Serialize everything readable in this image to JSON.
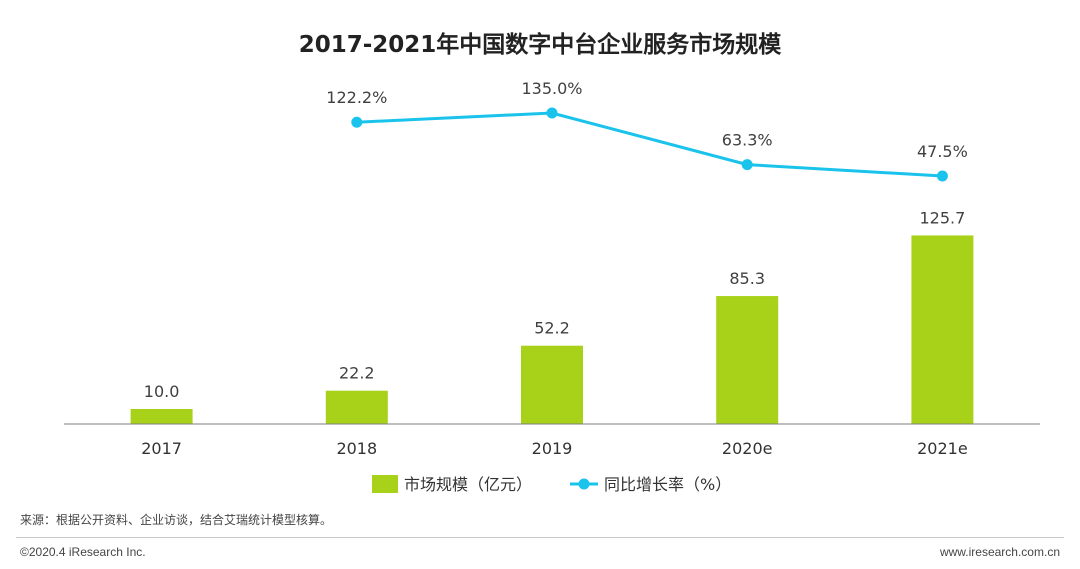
{
  "chart_data": {
    "type": "bar",
    "title": "2017-2021年中国数字中台企业服务市场规模",
    "categories": [
      "2017",
      "2018",
      "2019",
      "2020e",
      "2021e"
    ],
    "series": [
      {
        "name": "市场规模（亿元）",
        "kind": "bar",
        "color": "#a8d11a",
        "values": [
          10.0,
          22.2,
          52.2,
          85.3,
          125.7
        ],
        "labels": [
          "10.0",
          "22.2",
          "52.2",
          "85.3",
          "125.7"
        ]
      },
      {
        "name": "同比增长率（%）",
        "kind": "line",
        "color": "#19c3ec",
        "values": [
          null,
          122.2,
          135.0,
          63.3,
          47.5
        ],
        "labels": [
          "",
          "122.2%",
          "135.0%",
          "63.3%",
          "47.5%"
        ]
      }
    ],
    "xlabel": "",
    "ylabel": "",
    "ylim_bar": [
      0,
      140
    ],
    "ylim_line": [
      0,
      160
    ],
    "legend": "bottom-center",
    "grid": false
  },
  "source_text": "来源：根据公开资料、企业访谈，结合艾瑞统计模型核算。",
  "footer": {
    "copyright": "©2020.4 iResearch Inc.",
    "website": "www.iresearch.com.cn"
  }
}
